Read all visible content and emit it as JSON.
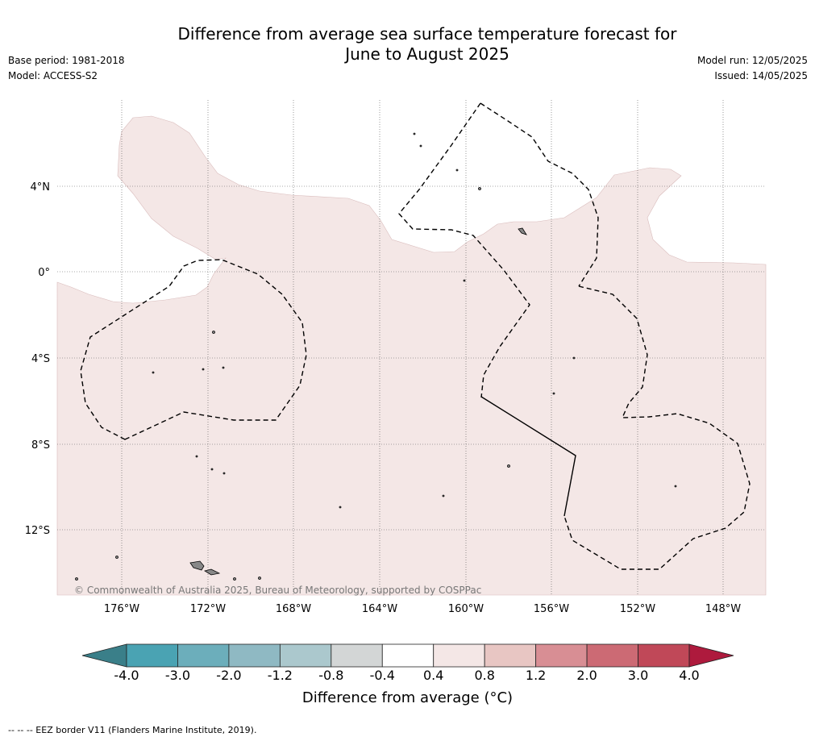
{
  "title_line1": "Difference from average sea surface temperature forecast for",
  "title_line2": "June to August 2025",
  "base_period": "Base period: 1981-2018",
  "model": "Model: ACCESS-S2",
  "model_run": "Model run: 12/05/2025",
  "issued": "Issued: 14/05/2025",
  "copyright": "© Commonwealth of Australia 2025, Bureau of Meteorology, supported by COSPPac",
  "eez_note": "--  --  -- EEZ border V11 (Flanders Marine Institute, 2019).",
  "lat_labels": [
    "4°N",
    "0°",
    "4°S",
    "8°S",
    "12°S"
  ],
  "lon_labels": [
    "176°W",
    "172°W",
    "168°W",
    "164°W",
    "160°W",
    "156°W",
    "152°W",
    "148°W"
  ],
  "colorbar": {
    "title": "Difference from average (°C)",
    "ticks": [
      "-4.0",
      "-3.0",
      "-2.0",
      "-1.2",
      "-0.8",
      "-0.4",
      "0.4",
      "0.8",
      "1.2",
      "2.0",
      "3.0",
      "4.0"
    ],
    "colors": [
      "#3a7f89",
      "#4aa3b3",
      "#6caebb",
      "#8fb9c3",
      "#abc8cd",
      "#d3d6d6",
      "#ffffff",
      "#f4e7e6",
      "#e8c6c3",
      "#d88e94",
      "#cc6a74",
      "#c04858",
      "#ae1a3d"
    ]
  },
  "colors": {
    "anomaly_fill": "#f4e7e6",
    "island": "#888888"
  }
}
